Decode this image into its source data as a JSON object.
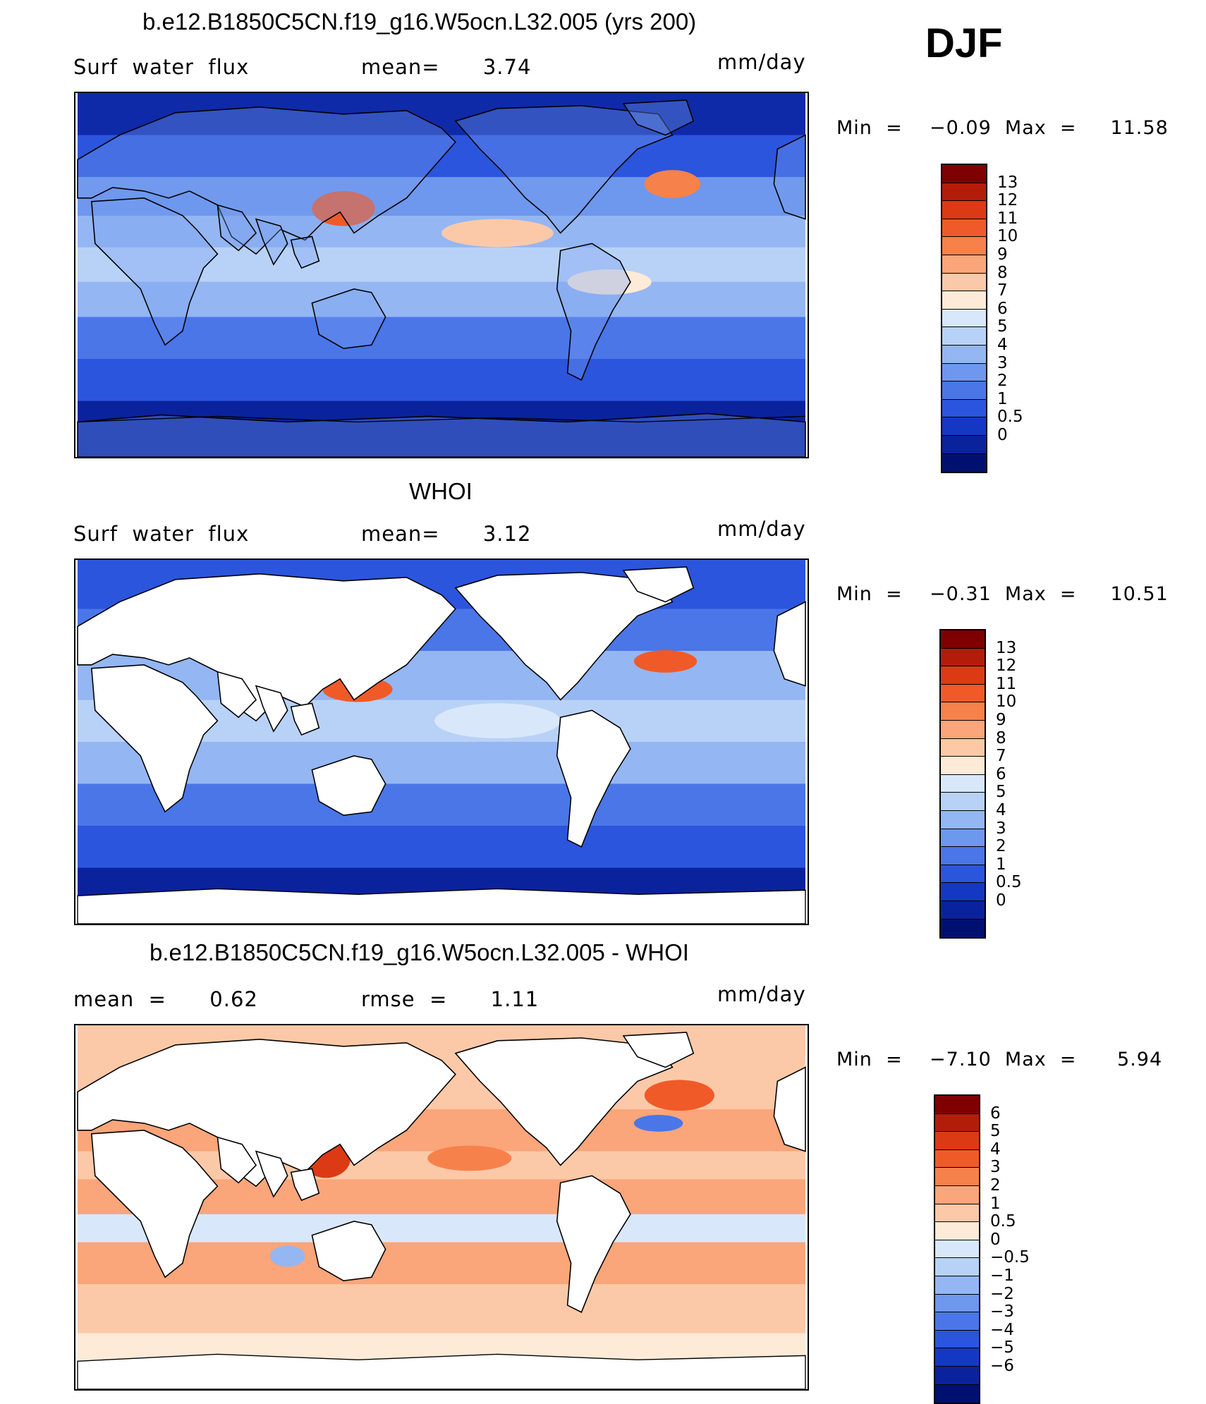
{
  "season": "DJF",
  "panels": [
    {
      "title": "b.e12.B1850C5CN.f19_g16.W5ocn.L32.005 (yrs 200)",
      "left_label": "Surf  water  flux",
      "mid_label": "mean=      3.74",
      "units": "mm/day",
      "minmax": "Min  =    −0.09  Max  =     11.58",
      "colorbar": {
        "colors": [
          "#7f0000",
          "#b41c0a",
          "#dc3a14",
          "#f05a28",
          "#f7814a",
          "#faa57a",
          "#fcc9a8",
          "#fdebd8",
          "#d8e8fa",
          "#b8d2f7",
          "#94b6f3",
          "#6e97ee",
          "#4a76e8",
          "#2b55dc",
          "#1438c4",
          "#0a229c",
          "#001070"
        ],
        "labels": [
          "13",
          "12",
          "11",
          "10",
          "9",
          "8",
          "7",
          "6",
          "5",
          "4",
          "3",
          "2",
          "1",
          "0.5",
          "0"
        ]
      }
    },
    {
      "title": "WHOI",
      "left_label": "Surf  water  flux",
      "mid_label": "mean=      3.12",
      "units": "mm/day",
      "minmax": "Min  =    −0.31  Max  =     10.51",
      "colorbar": {
        "colors": [
          "#7f0000",
          "#b41c0a",
          "#dc3a14",
          "#f05a28",
          "#f7814a",
          "#faa57a",
          "#fcc9a8",
          "#fdebd8",
          "#d8e8fa",
          "#b8d2f7",
          "#94b6f3",
          "#6e97ee",
          "#4a76e8",
          "#2b55dc",
          "#1438c4",
          "#0a229c",
          "#001070"
        ],
        "labels": [
          "13",
          "12",
          "11",
          "10",
          "9",
          "8",
          "7",
          "6",
          "5",
          "4",
          "3",
          "2",
          "1",
          "0.5",
          "0"
        ]
      }
    },
    {
      "title": "b.e12.B1850C5CN.f19_g16.W5ocn.L32.005 - WHOI",
      "left_label": "mean  =      0.62",
      "mid_label": "rmse  =      1.11",
      "units": "mm/day",
      "minmax": "Min  =    −7.10  Max  =      5.94",
      "colorbar": {
        "colors": [
          "#7f0000",
          "#b41c0a",
          "#dc3a14",
          "#f05a28",
          "#f7814a",
          "#faa57a",
          "#fcc9a8",
          "#fdebd8",
          "#d8e8fa",
          "#b8d2f7",
          "#94b6f3",
          "#6e97ee",
          "#4a76e8",
          "#2b55dc",
          "#1438c4",
          "#0a229c",
          "#001070"
        ],
        "labels": [
          "6",
          "5",
          "4",
          "3",
          "2",
          "1",
          "0.5",
          "0",
          "−0.5",
          "−1",
          "−2",
          "−3",
          "−4",
          "−5",
          "−6"
        ]
      }
    }
  ]
}
